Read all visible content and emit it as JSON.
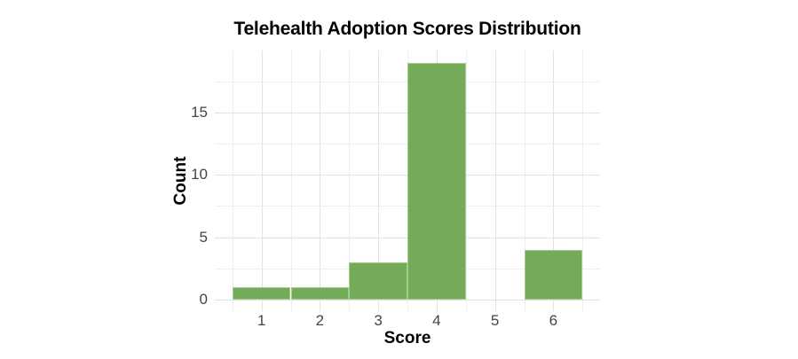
{
  "chart_data": {
    "type": "bar",
    "subtype": "histogram",
    "title": "Telehealth Adoption Scores Distribution",
    "xlabel": "Score",
    "ylabel": "Count",
    "categories": [
      1,
      2,
      3,
      4,
      5,
      6
    ],
    "values": [
      1,
      1,
      3,
      19,
      0,
      4
    ],
    "bar_width": 1,
    "xticks": [
      1,
      2,
      3,
      4,
      5,
      6
    ],
    "yticks": [
      0,
      5,
      10,
      15
    ],
    "xlim": [
      0.2,
      6.8
    ],
    "ylim": [
      -0.95,
      20.0
    ],
    "x_grid": {
      "start": 0.5,
      "end": 6.5,
      "step": 0.5
    },
    "y_grid": {
      "start": 0,
      "end": 17.5,
      "step": 2.5
    },
    "grid": true,
    "legend": "none",
    "colors": {
      "bar_fill": "#74ab58",
      "bar_border": "#a5cb8e",
      "grid_major": "#e2e2e2",
      "grid_minor": "#eeeeee",
      "zero_line": "#e0e0e0",
      "tick_text": "#454545",
      "title_text": "#000000",
      "background": "#ffffff"
    }
  }
}
